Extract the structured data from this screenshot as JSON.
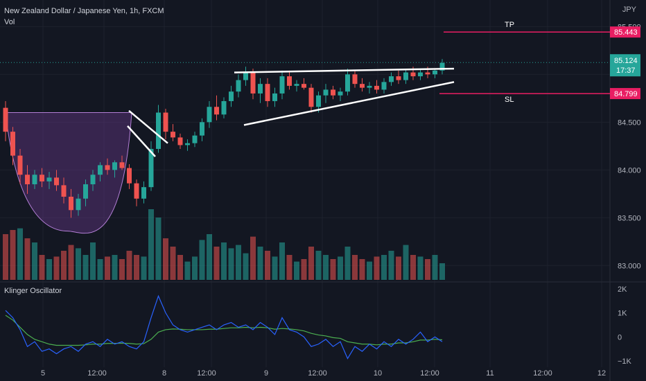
{
  "header": {
    "symbol_title": "New Zealand Dollar / Japanese Yen, 1h, FXCM",
    "volume_label": "Vol"
  },
  "axis": {
    "currency": "JPY",
    "price_ticks": [
      "85.500",
      "84.500",
      "84.000",
      "83.500",
      "83.000"
    ],
    "osc_ticks": [
      "2K",
      "1K",
      "0",
      "−1K"
    ],
    "time_ticks": [
      "5",
      "12:00",
      "8",
      "12:00",
      "9",
      "12:00",
      "10",
      "12:00",
      "11",
      "12:00",
      "12"
    ]
  },
  "badges": {
    "tp_price": "85.443",
    "current_price": "85.124",
    "countdown": "17:37",
    "sl_price": "84.799"
  },
  "annotations": {
    "tp_label": "TP",
    "sl_label": "SL"
  },
  "oscillator": {
    "title": "Klinger Oscillator"
  },
  "colors": {
    "background": "#131722",
    "up": "#26a69a",
    "down": "#ef5350",
    "tp_sl_line": "#e91e63",
    "current_badge": "#26a69a",
    "klinger": "#2962ff",
    "signal": "#4caf50",
    "cup_fill": "#7b3fa0"
  },
  "chart_data": {
    "type": "candlestick",
    "title": "New Zealand Dollar / Japanese Yen, 1h, FXCM",
    "y_unit": "JPY",
    "ylim": [
      82.85,
      85.72
    ],
    "levels": {
      "tp": 85.443,
      "current": 85.124,
      "sl": 84.799
    },
    "candles": [
      [
        84.65,
        84.72,
        84.3,
        84.4
      ],
      [
        84.4,
        84.45,
        84.05,
        84.15
      ],
      [
        84.15,
        84.22,
        83.85,
        83.95
      ],
      [
        83.95,
        84.05,
        83.75,
        83.85
      ],
      [
        83.85,
        84.0,
        83.8,
        83.95
      ],
      [
        83.95,
        84.02,
        83.82,
        83.88
      ],
      [
        83.88,
        83.98,
        83.8,
        83.92
      ],
      [
        83.92,
        84.0,
        83.78,
        83.84
      ],
      [
        83.84,
        83.92,
        83.65,
        83.72
      ],
      [
        83.72,
        83.8,
        83.5,
        83.58
      ],
      [
        83.58,
        83.75,
        83.52,
        83.7
      ],
      [
        83.7,
        83.9,
        83.62,
        83.85
      ],
      [
        83.85,
        84.0,
        83.78,
        83.95
      ],
      [
        83.95,
        84.08,
        83.88,
        84.05
      ],
      [
        84.05,
        84.12,
        83.95,
        84.0
      ],
      [
        84.0,
        84.1,
        83.92,
        84.08
      ],
      [
        84.08,
        84.15,
        84.0,
        84.02
      ],
      [
        84.02,
        84.06,
        83.8,
        83.86
      ],
      [
        83.86,
        83.9,
        83.62,
        83.7
      ],
      [
        83.7,
        83.88,
        83.65,
        83.82
      ],
      [
        83.82,
        84.3,
        83.78,
        84.22
      ],
      [
        84.22,
        84.68,
        84.18,
        84.6
      ],
      [
        84.6,
        84.64,
        84.32,
        84.4
      ],
      [
        84.4,
        84.48,
        84.3,
        84.34
      ],
      [
        84.34,
        84.38,
        84.22,
        84.26
      ],
      [
        84.26,
        84.32,
        84.2,
        84.28
      ],
      [
        84.28,
        84.4,
        84.24,
        84.36
      ],
      [
        84.36,
        84.54,
        84.3,
        84.5
      ],
      [
        84.5,
        84.72,
        84.44,
        84.66
      ],
      [
        84.66,
        84.78,
        84.52,
        84.58
      ],
      [
        84.58,
        84.76,
        84.54,
        84.72
      ],
      [
        84.72,
        84.88,
        84.66,
        84.82
      ],
      [
        84.82,
        85.0,
        84.76,
        84.94
      ],
      [
        84.94,
        85.08,
        84.88,
        85.02
      ],
      [
        85.02,
        85.06,
        84.74,
        84.8
      ],
      [
        84.8,
        84.96,
        84.7,
        84.9
      ],
      [
        84.9,
        84.96,
        84.66,
        84.72
      ],
      [
        84.72,
        84.86,
        84.66,
        84.8
      ],
      [
        84.8,
        85.04,
        84.74,
        84.98
      ],
      [
        84.98,
        85.04,
        84.84,
        84.88
      ],
      [
        84.88,
        84.94,
        84.82,
        84.9
      ],
      [
        84.9,
        84.96,
        84.84,
        84.86
      ],
      [
        84.86,
        84.9,
        84.6,
        84.66
      ],
      [
        84.66,
        84.82,
        84.6,
        84.78
      ],
      [
        84.78,
        84.9,
        84.7,
        84.84
      ],
      [
        84.84,
        84.88,
        84.74,
        84.78
      ],
      [
        84.78,
        84.86,
        84.72,
        84.82
      ],
      [
        84.82,
        85.06,
        84.78,
        85.0
      ],
      [
        85.0,
        85.04,
        84.86,
        84.9
      ],
      [
        84.9,
        84.96,
        84.82,
        84.86
      ],
      [
        84.86,
        84.92,
        84.8,
        84.88
      ],
      [
        84.88,
        84.94,
        84.8,
        84.84
      ],
      [
        84.84,
        84.96,
        84.8,
        84.92
      ],
      [
        84.92,
        85.02,
        84.88,
        84.98
      ],
      [
        84.98,
        85.04,
        84.9,
        84.94
      ],
      [
        84.94,
        85.06,
        84.9,
        85.02
      ],
      [
        85.02,
        85.08,
        84.94,
        84.98
      ],
      [
        84.98,
        85.06,
        84.94,
        85.02
      ],
      [
        85.02,
        85.08,
        84.96,
        85.0
      ],
      [
        85.0,
        85.06,
        84.96,
        85.04
      ],
      [
        85.04,
        85.16,
        85.0,
        85.12
      ]
    ],
    "volume": [
      {
        "v": 55,
        "up": false
      },
      {
        "v": 60,
        "up": false
      },
      {
        "v": 62,
        "up": true
      },
      {
        "v": 50,
        "up": false
      },
      {
        "v": 45,
        "up": true
      },
      {
        "v": 30,
        "up": false
      },
      {
        "v": 25,
        "up": true
      },
      {
        "v": 28,
        "up": false
      },
      {
        "v": 35,
        "up": false
      },
      {
        "v": 42,
        "up": false
      },
      {
        "v": 38,
        "up": true
      },
      {
        "v": 30,
        "up": true
      },
      {
        "v": 45,
        "up": true
      },
      {
        "v": 25,
        "up": true
      },
      {
        "v": 28,
        "up": false
      },
      {
        "v": 30,
        "up": true
      },
      {
        "v": 25,
        "up": false
      },
      {
        "v": 35,
        "up": false
      },
      {
        "v": 30,
        "up": false
      },
      {
        "v": 28,
        "up": true
      },
      {
        "v": 85,
        "up": true
      },
      {
        "v": 75,
        "up": true
      },
      {
        "v": 50,
        "up": false
      },
      {
        "v": 40,
        "up": false
      },
      {
        "v": 30,
        "up": false
      },
      {
        "v": 22,
        "up": true
      },
      {
        "v": 28,
        "up": true
      },
      {
        "v": 48,
        "up": true
      },
      {
        "v": 55,
        "up": true
      },
      {
        "v": 40,
        "up": false
      },
      {
        "v": 45,
        "up": true
      },
      {
        "v": 38,
        "up": true
      },
      {
        "v": 42,
        "up": true
      },
      {
        "v": 32,
        "up": true
      },
      {
        "v": 52,
        "up": false
      },
      {
        "v": 40,
        "up": true
      },
      {
        "v": 35,
        "up": false
      },
      {
        "v": 28,
        "up": true
      },
      {
        "v": 45,
        "up": true
      },
      {
        "v": 30,
        "up": false
      },
      {
        "v": 22,
        "up": true
      },
      {
        "v": 25,
        "up": false
      },
      {
        "v": 40,
        "up": false
      },
      {
        "v": 35,
        "up": true
      },
      {
        "v": 30,
        "up": true
      },
      {
        "v": 25,
        "up": false
      },
      {
        "v": 28,
        "up": true
      },
      {
        "v": 40,
        "up": true
      },
      {
        "v": 30,
        "up": false
      },
      {
        "v": 25,
        "up": false
      },
      {
        "v": 22,
        "up": true
      },
      {
        "v": 28,
        "up": false
      },
      {
        "v": 30,
        "up": true
      },
      {
        "v": 35,
        "up": true
      },
      {
        "v": 28,
        "up": false
      },
      {
        "v": 42,
        "up": true
      },
      {
        "v": 30,
        "up": false
      },
      {
        "v": 28,
        "up": true
      },
      {
        "v": 25,
        "up": false
      },
      {
        "v": 30,
        "up": true
      },
      {
        "v": 20,
        "up": true
      }
    ],
    "klinger": [
      1.1,
      0.8,
      0.3,
      -0.4,
      -0.2,
      -0.6,
      -0.5,
      -0.7,
      -0.5,
      -0.4,
      -0.6,
      -0.3,
      -0.2,
      -0.4,
      -0.1,
      -0.3,
      -0.2,
      -0.4,
      -0.5,
      -0.2,
      0.8,
      1.7,
      1.0,
      0.5,
      0.3,
      0.2,
      0.3,
      0.4,
      0.5,
      0.3,
      0.5,
      0.6,
      0.4,
      0.5,
      0.3,
      0.6,
      0.4,
      0.1,
      0.8,
      0.3,
      0.2,
      0.0,
      -0.4,
      -0.3,
      -0.1,
      -0.4,
      -0.2,
      -0.9,
      -0.4,
      -0.6,
      -0.3,
      -0.5,
      -0.2,
      -0.4,
      -0.1,
      -0.3,
      -0.1,
      0.2,
      -0.2,
      0.0,
      -0.2
    ],
    "signal": [
      0.9,
      0.7,
      0.4,
      0.1,
      -0.1,
      -0.2,
      -0.3,
      -0.35,
      -0.35,
      -0.35,
      -0.35,
      -0.33,
      -0.3,
      -0.3,
      -0.27,
      -0.27,
      -0.26,
      -0.27,
      -0.3,
      -0.28,
      -0.1,
      0.2,
      0.3,
      0.33,
      0.32,
      0.3,
      0.3,
      0.3,
      0.32,
      0.32,
      0.35,
      0.38,
      0.38,
      0.4,
      0.38,
      0.4,
      0.38,
      0.32,
      0.35,
      0.33,
      0.3,
      0.25,
      0.15,
      0.08,
      0.04,
      -0.03,
      -0.06,
      -0.2,
      -0.25,
      -0.3,
      -0.3,
      -0.33,
      -0.3,
      -0.3,
      -0.25,
      -0.25,
      -0.2,
      -0.13,
      -0.13,
      -0.1,
      -0.12
    ]
  }
}
